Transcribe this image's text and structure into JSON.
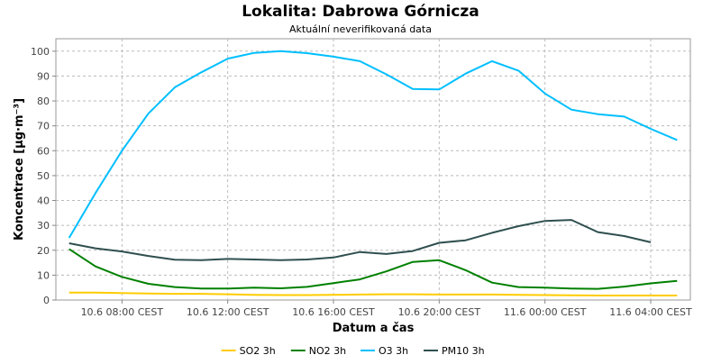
{
  "chart_data": {
    "type": "line",
    "title": "Lokalita: Dabrowa Górnicza",
    "subtitle": "Aktuální neverifikovaná data",
    "xlabel": "Datum a čas",
    "ylabel": "Koncentrace [µg·m⁻³]",
    "ylim": [
      0,
      105
    ],
    "yticks": [
      0,
      10,
      20,
      30,
      40,
      50,
      60,
      70,
      80,
      90,
      100
    ],
    "xlim": [
      5.5,
      29.5
    ],
    "x_ticks": [
      {
        "x": 8,
        "label": "10.6 08:00 CEST"
      },
      {
        "x": 12,
        "label": "10.6 12:00 CEST"
      },
      {
        "x": 16,
        "label": "10.6 16:00 CEST"
      },
      {
        "x": 20,
        "label": "10.6 20:00 CEST"
      },
      {
        "x": 24,
        "label": "11.6 00:00 CEST"
      },
      {
        "x": 28,
        "label": "11.6 04:00 CEST"
      }
    ],
    "grid": true,
    "legend_position": "bottom",
    "x": [
      6,
      7,
      8,
      9,
      10,
      11,
      12,
      13,
      14,
      15,
      16,
      17,
      18,
      19,
      20,
      21,
      22,
      23,
      24,
      25,
      26,
      27,
      28,
      29
    ],
    "series": [
      {
        "name": "SO2 3h",
        "color": "#ffcc00",
        "values": [
          3,
          3,
          2.8,
          2.6,
          2.5,
          2.5,
          2.3,
          2.1,
          2,
          2,
          2.1,
          2.2,
          2.3,
          2.3,
          2.2,
          2.2,
          2.2,
          2.1,
          2,
          1.9,
          1.8,
          1.8,
          1.8,
          1.8
        ]
      },
      {
        "name": "NO2 3h",
        "color": "#008000",
        "values": [
          20.5,
          13.5,
          9.3,
          6.5,
          5.2,
          4.6,
          4.6,
          5,
          4.7,
          5.3,
          6.8,
          8.3,
          11.5,
          15.3,
          16,
          12,
          7,
          5.2,
          5,
          4.6,
          4.5,
          5.4,
          6.7,
          7.7
        ]
      },
      {
        "name": "O3 3h",
        "color": "#00bfff",
        "values": [
          25,
          43,
          60,
          75,
          85.5,
          91.5,
          97,
          99.3,
          100,
          99.2,
          97.8,
          96,
          90.7,
          84.8,
          84.6,
          91,
          96,
          92.2,
          83,
          76.5,
          74.7,
          73.7,
          68.8,
          64.3
        ]
      },
      {
        "name": "PM10 3h",
        "color": "#2f4f4f",
        "values": [
          22.8,
          20.8,
          19.5,
          17.7,
          16.2,
          16,
          16.5,
          16.3,
          16,
          16.3,
          17.1,
          19.3,
          18.5,
          19.7,
          23,
          24,
          27,
          29.7,
          31.8,
          32.2,
          27.3,
          25.7,
          23.2,
          null
        ]
      }
    ]
  }
}
